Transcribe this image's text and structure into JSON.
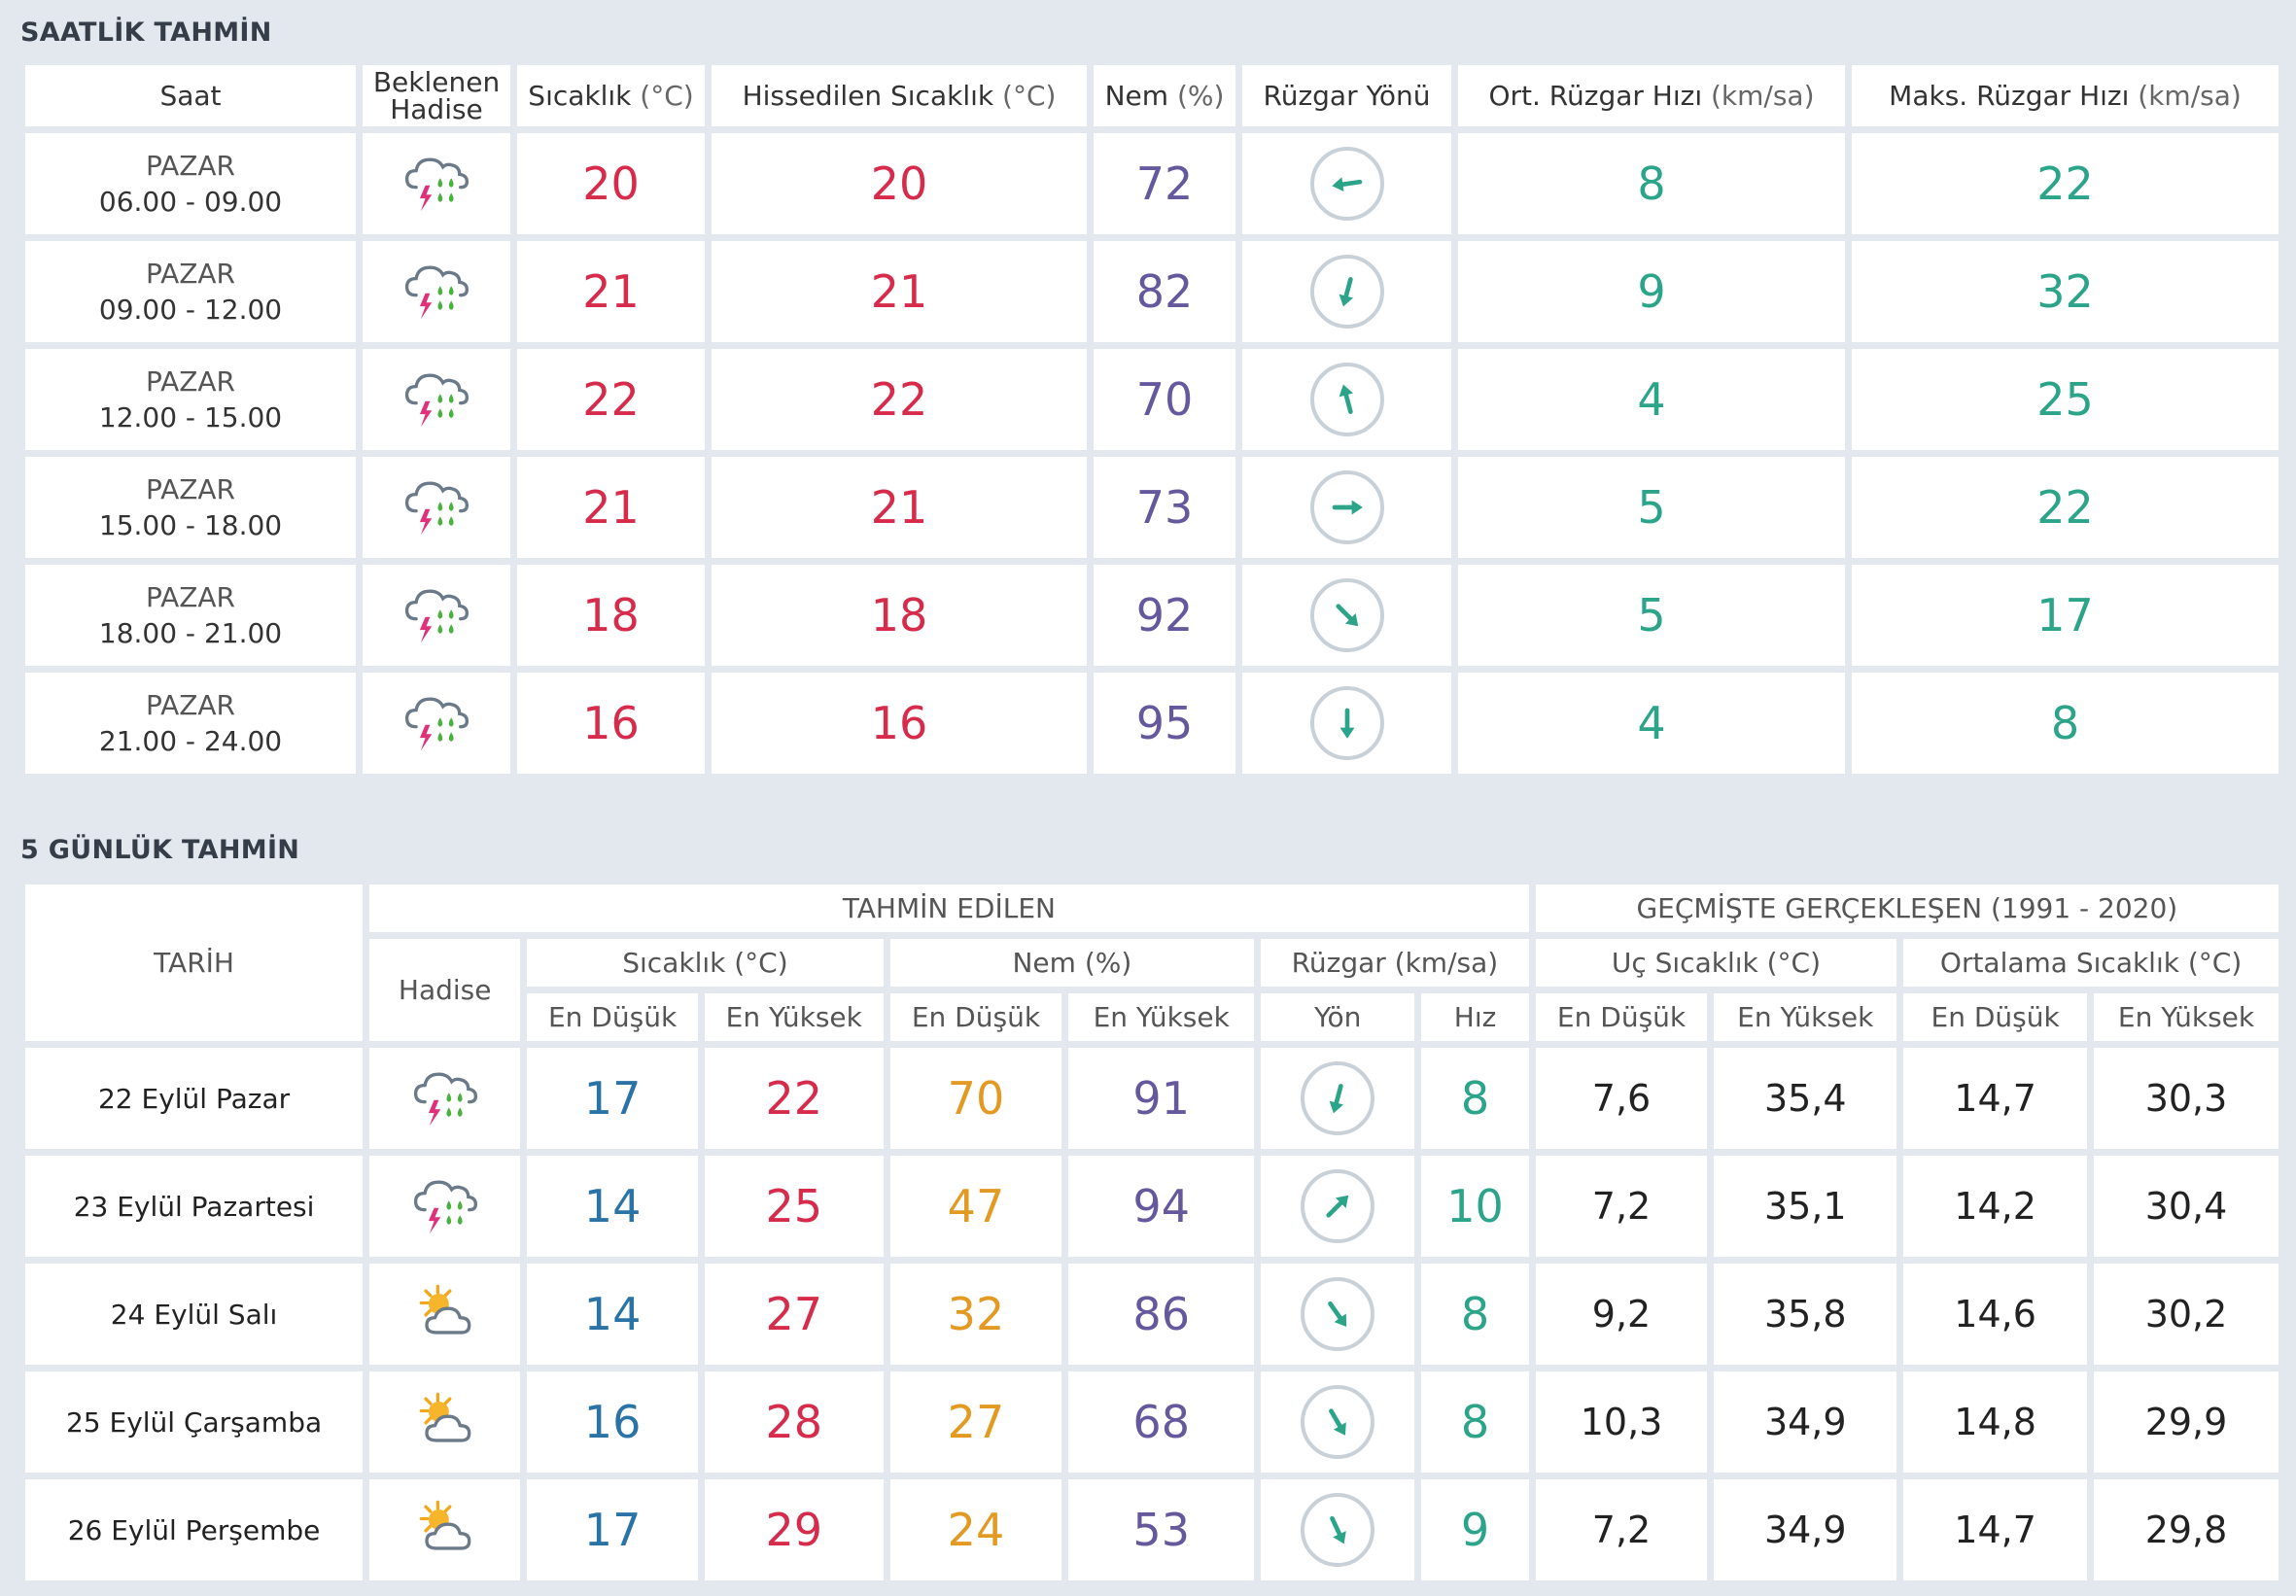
{
  "hourly": {
    "title": "SAATLİK TAHMİN",
    "headers": {
      "saat": "Saat",
      "hadise_1": "Beklenen",
      "hadise_2": "Hadise",
      "sicaklik": "Sıcaklık",
      "sicaklik_unit": "(°C)",
      "hissedilen": "Hissedilen Sıcaklık",
      "hissedilen_unit": "(°C)",
      "nem": "Nem",
      "nem_unit": "(%)",
      "yon": "Rüzgar Yönü",
      "ort": "Ort. Rüzgar Hızı",
      "ort_unit": "(km/sa)",
      "maks": "Maks. Rüzgar Hızı",
      "maks_unit": "(km/sa)"
    },
    "rows": [
      {
        "day": "PAZAR",
        "time": "06.00 - 09.00",
        "icon": "thunder-rain-icon",
        "temp": "20",
        "feels": "20",
        "humidity": "72",
        "wind_deg": 262,
        "avg": "8",
        "max": "22"
      },
      {
        "day": "PAZAR",
        "time": "09.00 - 12.00",
        "icon": "thunder-rain-icon",
        "temp": "21",
        "feels": "21",
        "humidity": "82",
        "wind_deg": 195,
        "avg": "9",
        "max": "32"
      },
      {
        "day": "PAZAR",
        "time": "12.00 - 15.00",
        "icon": "thunder-rain-icon",
        "temp": "22",
        "feels": "22",
        "humidity": "70",
        "wind_deg": -15,
        "avg": "4",
        "max": "25"
      },
      {
        "day": "PAZAR",
        "time": "15.00 - 18.00",
        "icon": "thunder-rain-icon",
        "temp": "21",
        "feels": "21",
        "humidity": "73",
        "wind_deg": 90,
        "avg": "5",
        "max": "22"
      },
      {
        "day": "PAZAR",
        "time": "18.00 - 21.00",
        "icon": "thunder-rain-icon",
        "temp": "18",
        "feels": "18",
        "humidity": "92",
        "wind_deg": 135,
        "avg": "5",
        "max": "17"
      },
      {
        "day": "PAZAR",
        "time": "21.00 - 24.00",
        "icon": "thunder-rain-icon",
        "temp": "16",
        "feels": "16",
        "humidity": "95",
        "wind_deg": 180,
        "avg": "4",
        "max": "8"
      }
    ]
  },
  "daily": {
    "title": "5 GÜNLÜK TAHMİN",
    "headers": {
      "tarih": "TARİH",
      "tahmin": "TAHMİN EDİLEN",
      "gecmis": "GEÇMİŞTE GERÇEKLEŞEN (1991 - 2020)",
      "hadise": "Hadise",
      "sicaklik": "Sıcaklık (°C)",
      "nem": "Nem (%)",
      "ruzgar": "Rüzgar (km/sa)",
      "uc": "Uç Sıcaklık (°C)",
      "ortalama": "Ortalama Sıcaklık (°C)",
      "en_dusuk": "En Düşük",
      "en_yuksek": "En Yüksek",
      "yon": "Yön",
      "hiz": "Hız"
    },
    "rows": [
      {
        "date": "22 Eylül Pazar",
        "icon": "thunder-rain-icon",
        "tmin": "17",
        "tmax": "22",
        "hmin": "70",
        "hmax": "91",
        "wind_deg": 195,
        "speed": "8",
        "uc_min": "7,6",
        "uc_max": "35,4",
        "ort_min": "14,7",
        "ort_max": "30,3"
      },
      {
        "date": "23 Eylül Pazartesi",
        "icon": "thunder-rain-icon",
        "tmin": "14",
        "tmax": "25",
        "hmin": "47",
        "hmax": "94",
        "wind_deg": 45,
        "speed": "10",
        "uc_min": "7,2",
        "uc_max": "35,1",
        "ort_min": "14,2",
        "ort_max": "30,4"
      },
      {
        "date": "24 Eylül Salı",
        "icon": "partly-sunny-icon",
        "tmin": "14",
        "tmax": "27",
        "hmin": "32",
        "hmax": "86",
        "wind_deg": 145,
        "speed": "8",
        "uc_min": "9,2",
        "uc_max": "35,8",
        "ort_min": "14,6",
        "ort_max": "30,2"
      },
      {
        "date": "25 Eylül Çarşamba",
        "icon": "partly-sunny-icon",
        "tmin": "16",
        "tmax": "28",
        "hmin": "27",
        "hmax": "68",
        "wind_deg": 150,
        "speed": "8",
        "uc_min": "10,3",
        "uc_max": "34,9",
        "ort_min": "14,8",
        "ort_max": "29,9"
      },
      {
        "date": "26 Eylül Perşembe",
        "icon": "partly-sunny-icon",
        "tmin": "17",
        "tmax": "29",
        "hmin": "24",
        "hmax": "53",
        "wind_deg": 155,
        "speed": "9",
        "uc_min": "7,2",
        "uc_max": "34,9",
        "ort_min": "14,7",
        "ort_max": "29,8"
      }
    ]
  },
  "colors": {
    "temp": "#d72b4b",
    "humidity": "#66589c",
    "wind": "#2ba48a",
    "min": "#2a73a6",
    "hum_min": "#e39a23"
  }
}
